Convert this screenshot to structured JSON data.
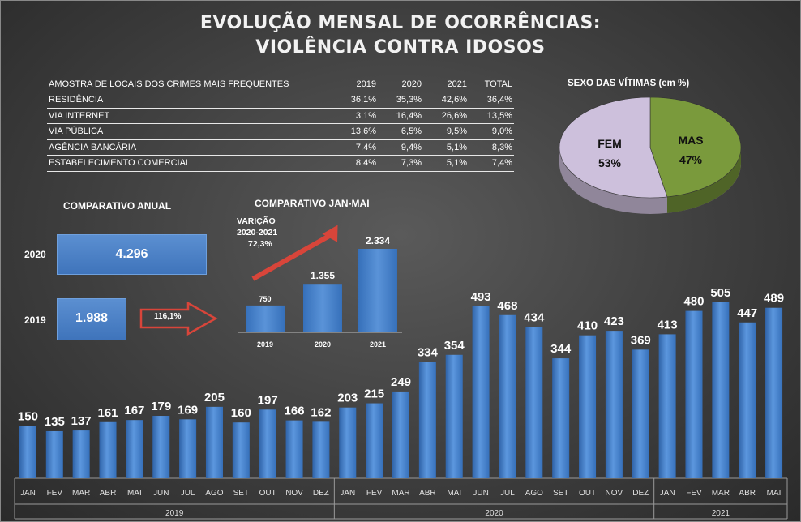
{
  "header": {
    "title_line1": "EVOLUÇÃO MENSAL DE OCORRÊNCIAS:",
    "title_line2": "VIOLÊNCIA CONTRA IDOSOS"
  },
  "locations_table": {
    "headers": [
      "AMOSTRA DE LOCAIS DOS CRIMES MAIS FREQUENTES",
      "2019",
      "2020",
      "2021",
      "TOTAL"
    ],
    "rows": [
      [
        "RESIDÊNCIA",
        "36,1%",
        "35,3%",
        "42,6%",
        "36,4%"
      ],
      [
        "VIA INTERNET",
        "3,1%",
        "16,4%",
        "26,6%",
        "13,5%"
      ],
      [
        "VIA PÚBLICA",
        "13,6%",
        "6,5%",
        "9,5%",
        "9,0%"
      ],
      [
        "AGÊNCIA BANCÁRIA",
        "7,4%",
        "9,4%",
        "5,1%",
        "8,3%"
      ],
      [
        "ESTABELECIMENTO COMERCIAL",
        "8,4%",
        "7,3%",
        "5,1%",
        "7,4%"
      ]
    ]
  },
  "annual": {
    "title": "COMPARATIVO ANUAL",
    "rows": [
      {
        "year": "2020",
        "label": "4.296",
        "value": 4296
      },
      {
        "year": "2019",
        "label": "1.988",
        "value": 1988
      }
    ],
    "growth_label": "116,1%"
  },
  "chart_data": [
    {
      "type": "bar",
      "title": "",
      "categories": [
        "JAN",
        "FEV",
        "MAR",
        "ABR",
        "MAI",
        "JUN",
        "JUL",
        "AGO",
        "SET",
        "OUT",
        "NOV",
        "DEZ",
        "JAN",
        "FEV",
        "MAR",
        "ABR",
        "MAI",
        "JUN",
        "JUL",
        "AGO",
        "SET",
        "OUT",
        "NOV",
        "DEZ",
        "JAN",
        "FEV",
        "MAR",
        "ABR",
        "MAI"
      ],
      "groups": [
        {
          "label": "2019",
          "start": 0,
          "count": 12
        },
        {
          "label": "2020",
          "start": 12,
          "count": 12
        },
        {
          "label": "2021",
          "start": 24,
          "count": 5
        }
      ],
      "values": [
        150,
        135,
        137,
        161,
        167,
        179,
        169,
        205,
        160,
        197,
        166,
        162,
        203,
        215,
        249,
        334,
        354,
        493,
        468,
        434,
        344,
        410,
        423,
        369,
        413,
        480,
        505,
        447,
        489
      ],
      "ylim": [
        0,
        560
      ],
      "grid": false
    },
    {
      "type": "bar",
      "title": "COMPARATIVO JAN-MAI",
      "categories": [
        "2019",
        "2020",
        "2021"
      ],
      "values": [
        750,
        1355,
        2334
      ],
      "labels": [
        "750",
        "1.355",
        "2.334"
      ],
      "annotation": [
        "VARIÇÃO",
        "2020-2021",
        "72,3%"
      ],
      "ylim": [
        0,
        2500
      ]
    },
    {
      "type": "pie",
      "title": "SEXO DAS VÍTIMAS (em %)",
      "slices": [
        {
          "name": "FEM",
          "label": "53%",
          "value": 53,
          "color": "#cdc0dc"
        },
        {
          "name": "MAS",
          "label": "47%",
          "value": 47,
          "color": "#7a9a3c"
        }
      ]
    }
  ],
  "colors": {
    "bar": "#4a86d0",
    "bar_dark": "#2f63a8",
    "arrow_red": "#d8453a",
    "axis": "#9a9a9a"
  }
}
